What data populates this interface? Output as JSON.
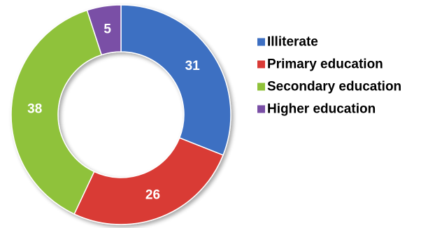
{
  "chart_data": {
    "type": "pie",
    "donut": true,
    "title": "",
    "categories": [
      "Illiterate",
      "Primary education",
      "Secondary education",
      "Higher education"
    ],
    "values": [
      31,
      26,
      38,
      5
    ],
    "data_labels": [
      "31",
      "26",
      "38",
      "5"
    ],
    "colors": [
      "#3d6fc2",
      "#d93a36",
      "#8fc23a",
      "#7a4fa6"
    ],
    "legend_position": "right",
    "start_angle_deg": 0,
    "direction": "clockwise"
  }
}
